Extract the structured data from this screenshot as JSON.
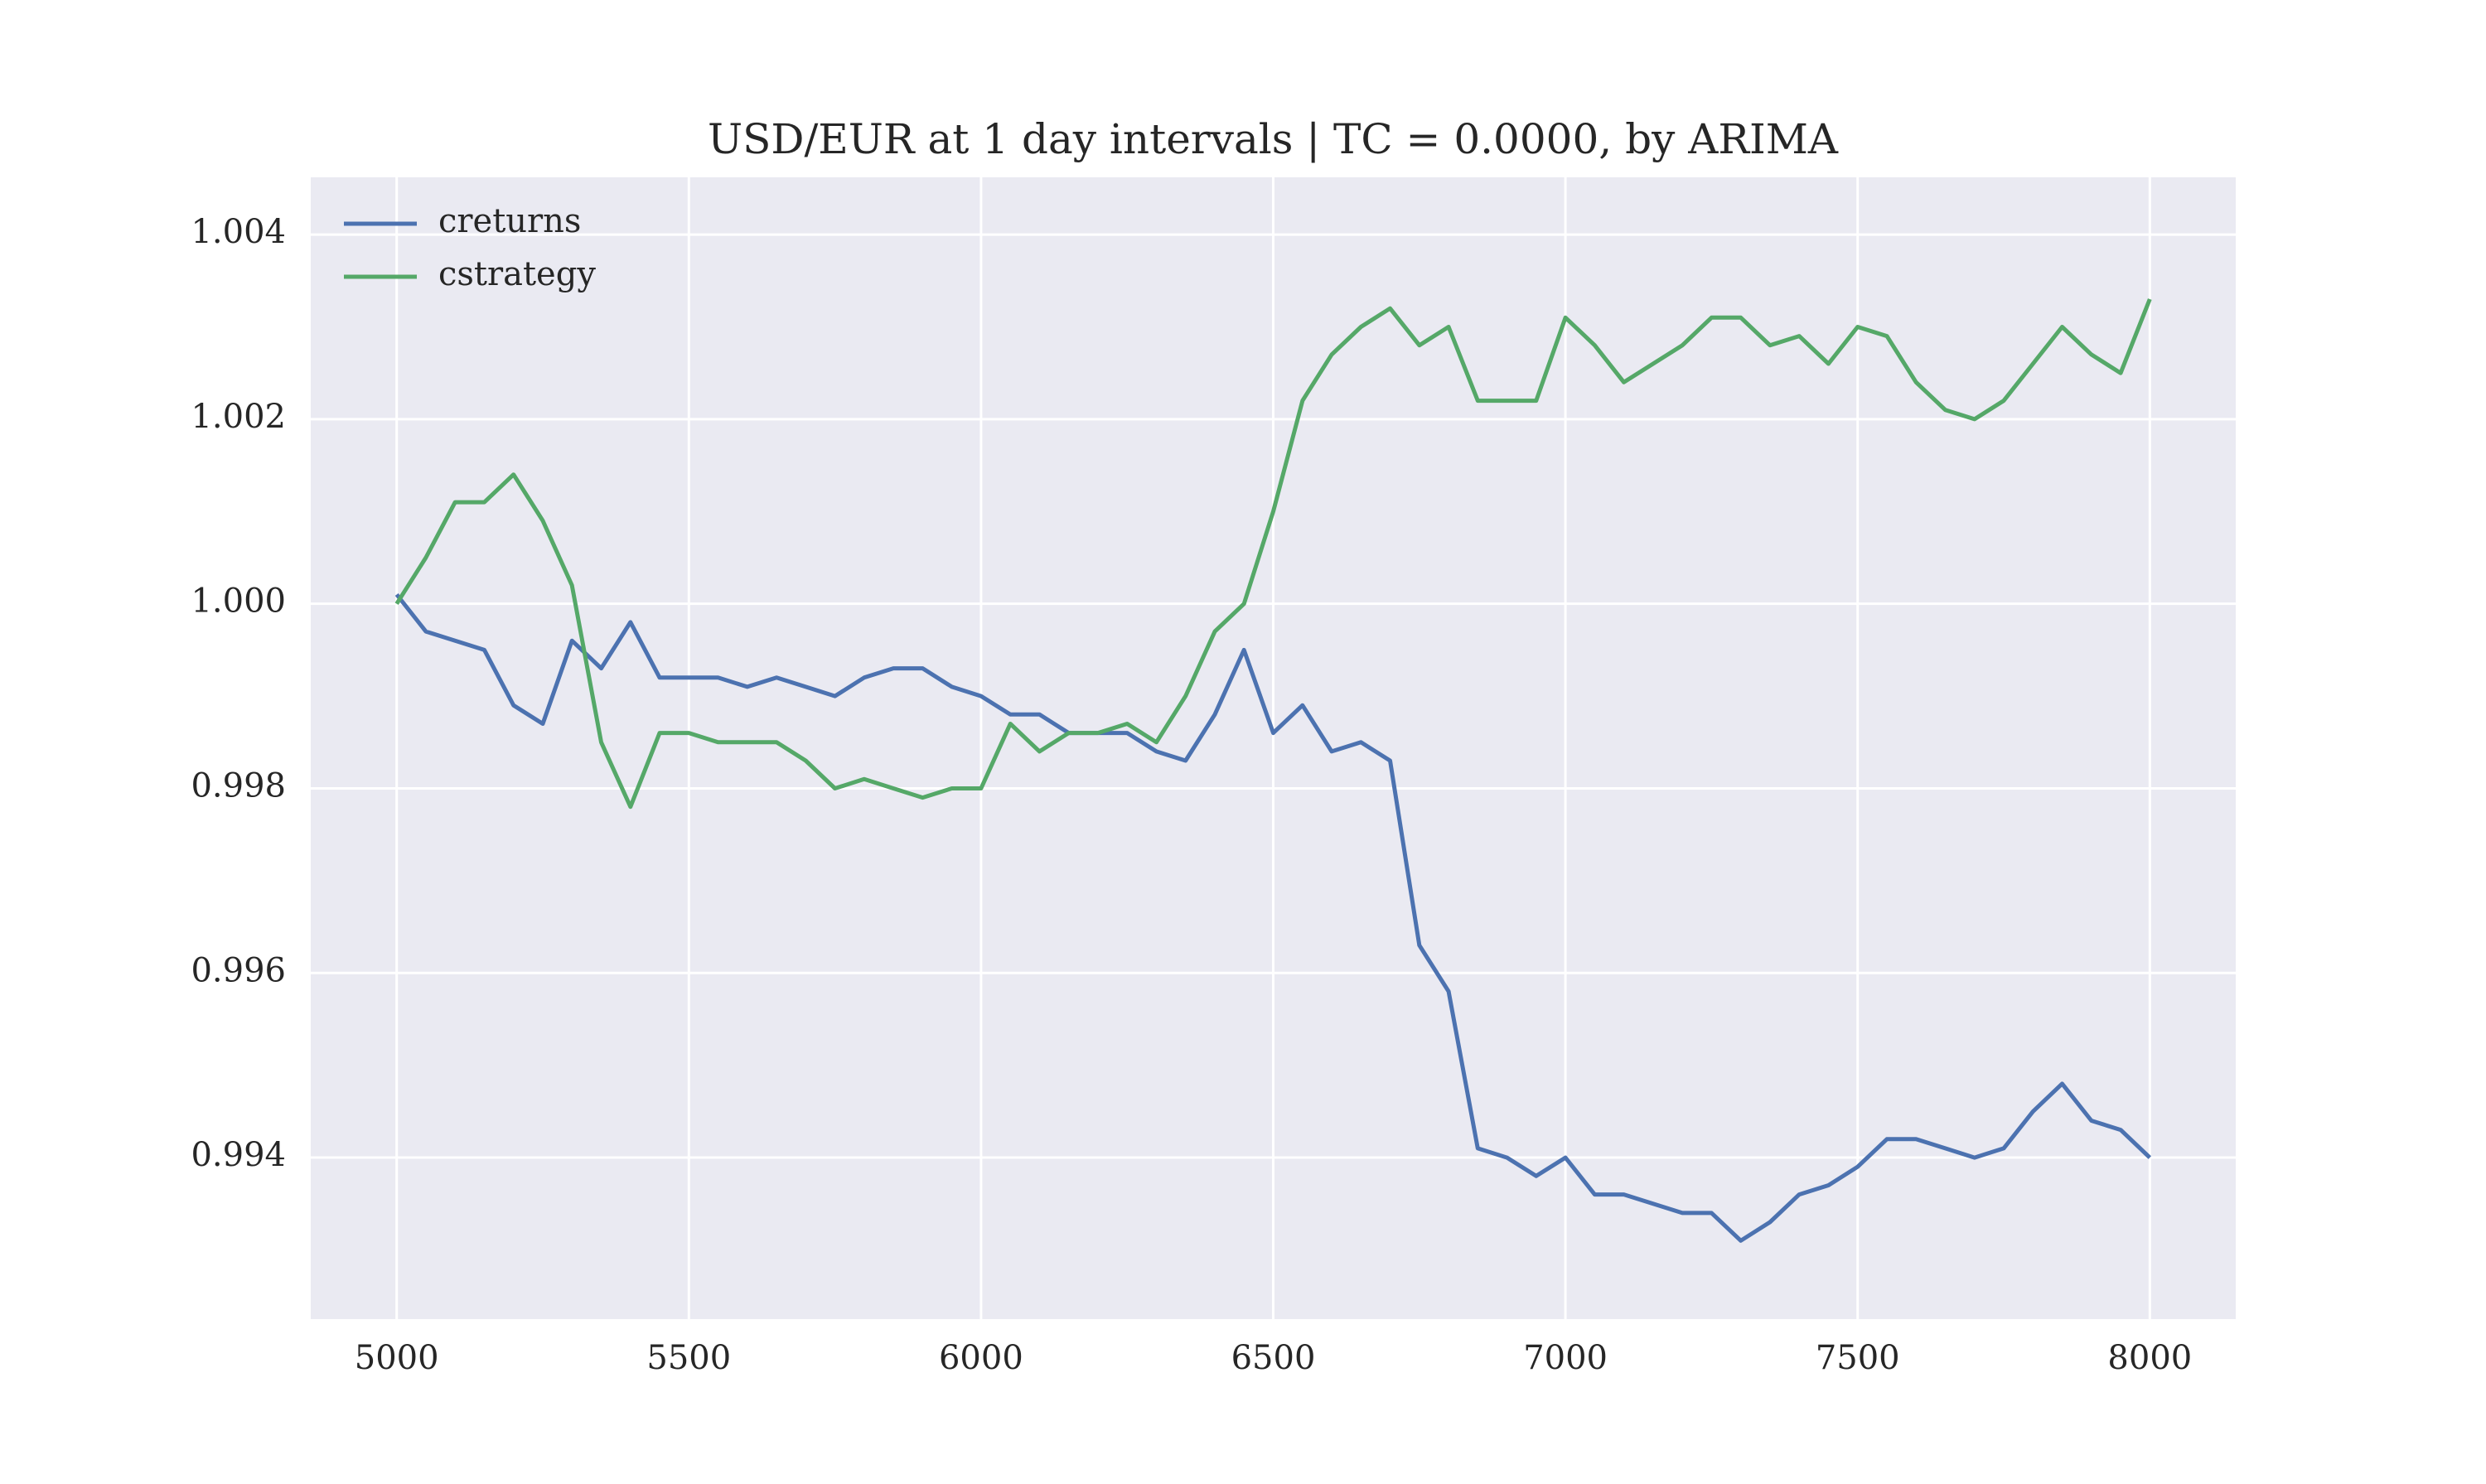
{
  "chart_data": {
    "type": "line",
    "title": "USD/EUR at 1 day intervals | TC = 0.0000, by ARIMA",
    "x": [
      5000,
      5050,
      5100,
      5150,
      5200,
      5250,
      5300,
      5350,
      5400,
      5450,
      5500,
      5550,
      5600,
      5650,
      5700,
      5750,
      5800,
      5850,
      5900,
      5950,
      6000,
      6050,
      6100,
      6150,
      6200,
      6250,
      6300,
      6350,
      6400,
      6450,
      6500,
      6550,
      6600,
      6650,
      6700,
      6750,
      6800,
      6850,
      6900,
      6950,
      7000,
      7050,
      7100,
      7150,
      7200,
      7250,
      7300,
      7350,
      7400,
      7450,
      7500,
      7550,
      7600,
      7650,
      7700,
      7750,
      7800,
      7850,
      7900,
      7950,
      8000
    ],
    "series": [
      {
        "name": "creturns",
        "color": "#4c72b0",
        "values": [
          1.0001,
          0.9997,
          0.9996,
          0.9995,
          0.9989,
          0.9987,
          0.9996,
          0.9993,
          0.9998,
          0.9992,
          0.9992,
          0.9992,
          0.9991,
          0.9992,
          0.9991,
          0.999,
          0.9992,
          0.9993,
          0.9993,
          0.9991,
          0.999,
          0.9988,
          0.9988,
          0.9986,
          0.9986,
          0.9986,
          0.9984,
          0.9983,
          0.9988,
          0.9995,
          0.9986,
          0.9989,
          0.9984,
          0.9985,
          0.9983,
          0.9963,
          0.9958,
          0.9941,
          0.994,
          0.9938,
          0.994,
          0.9936,
          0.9936,
          0.9935,
          0.9934,
          0.9934,
          0.9931,
          0.9933,
          0.9936,
          0.9937,
          0.9939,
          0.9942,
          0.9942,
          0.9941,
          0.994,
          0.9941,
          0.9945,
          0.9948,
          0.9944,
          0.9943,
          0.994
        ]
      },
      {
        "name": "cstrategy",
        "color": "#55a868",
        "values": [
          1.0,
          1.0005,
          1.0011,
          1.0011,
          1.0014,
          1.0009,
          1.0002,
          0.9985,
          0.9978,
          0.9986,
          0.9986,
          0.9985,
          0.9985,
          0.9985,
          0.9983,
          0.998,
          0.9981,
          0.998,
          0.9979,
          0.998,
          0.998,
          0.9987,
          0.9984,
          0.9986,
          0.9986,
          0.9987,
          0.9985,
          0.999,
          0.9997,
          1.0,
          1.001,
          1.0022,
          1.0027,
          1.003,
          1.0032,
          1.0028,
          1.003,
          1.0022,
          1.0022,
          1.0022,
          1.0031,
          1.0028,
          1.0024,
          1.0026,
          1.0028,
          1.0031,
          1.0031,
          1.0028,
          1.0029,
          1.0026,
          1.003,
          1.0029,
          1.0024,
          1.0021,
          1.002,
          1.0022,
          1.0026,
          1.003,
          1.0027,
          1.0025,
          1.0033
        ]
      }
    ],
    "xlim": [
      4853,
      8147
    ],
    "xticks": [
      5000,
      5500,
      6000,
      6500,
      7000,
      7500,
      8000
    ],
    "ylim": [
      0.99225,
      1.00462
    ],
    "yticks": [
      0.994,
      0.996,
      0.998,
      {
        "value": 1,
        "label": "1.000"
      },
      1.002,
      1.004
    ],
    "grid": true,
    "legend": "upper left"
  }
}
